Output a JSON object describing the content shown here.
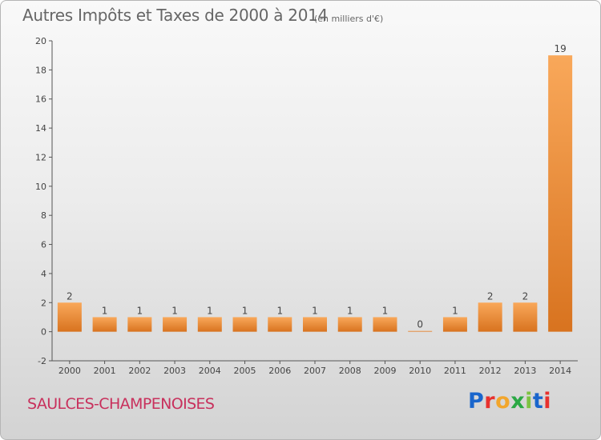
{
  "header": {
    "title": "Autres Impôts et Taxes de 2000 à 2014",
    "unit": "(en milliers d'€)"
  },
  "footer": {
    "commune": "SAULCES-CHAMPENOISES",
    "logo": "Proxiti",
    "logo_colors": [
      "#1a66cc",
      "#e8312d",
      "#f2a62c",
      "#2aa844",
      "#7cc242",
      "#1a66cc",
      "#e8312d"
    ]
  },
  "colors": {
    "bar_light": "#f9a85a",
    "bar_dark": "#d8731f",
    "axis": "#555555",
    "text": "#444444",
    "commune": "#c8305c"
  },
  "chart_data": {
    "type": "bar",
    "categories": [
      "2000",
      "2001",
      "2002",
      "2003",
      "2004",
      "2005",
      "2006",
      "2007",
      "2008",
      "2009",
      "2010",
      "2011",
      "2012",
      "2013",
      "2014"
    ],
    "values": [
      2,
      1,
      1,
      1,
      1,
      1,
      1,
      1,
      1,
      1,
      0,
      1,
      2,
      2,
      19
    ],
    "data_labels": [
      "2",
      "1",
      "1",
      "1",
      "1",
      "1",
      "1",
      "1",
      "1",
      "1",
      "0",
      "1",
      "2",
      "2",
      "19"
    ],
    "yticks": [
      "-2",
      "0",
      "2",
      "4",
      "6",
      "8",
      "10",
      "12",
      "14",
      "16",
      "18",
      "20"
    ],
    "ylim": [
      -2,
      20
    ],
    "title": "Autres Impôts et Taxes de 2000 à 2014",
    "xlabel": "",
    "ylabel": "",
    "grid": false,
    "legend": "none"
  }
}
